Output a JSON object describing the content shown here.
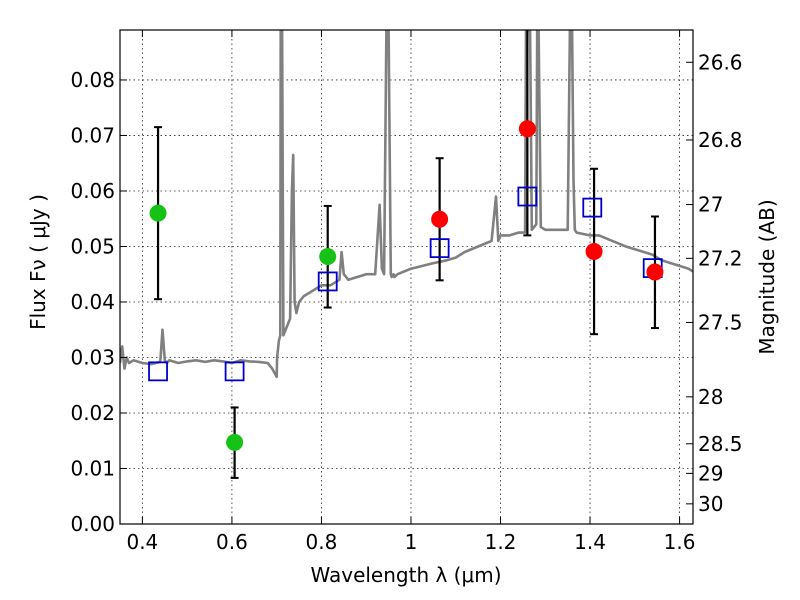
{
  "chart_data": {
    "type": "scatter",
    "xlabel": "Wavelength  λ (μm)",
    "ylabel": "Flux  Fν  ( μJy )",
    "y2label": "Magnitude (AB)",
    "xlim": [
      0.35,
      1.63
    ],
    "ylim": [
      0.0,
      0.089
    ],
    "grid": true,
    "x_ticks": [
      0.4,
      0.6,
      0.8,
      1.0,
      1.2,
      1.4,
      1.6
    ],
    "x_tick_labels": [
      "0.4",
      "0.6",
      "0.8",
      "1",
      "1.2",
      "1.4",
      "1.6"
    ],
    "y_ticks": [
      0.0,
      0.01,
      0.02,
      0.03,
      0.04,
      0.05,
      0.06,
      0.07,
      0.08
    ],
    "y_tick_labels": [
      "0.00",
      "0.01",
      "0.02",
      "0.03",
      "0.04",
      "0.05",
      "0.06",
      "0.07",
      "0.08"
    ],
    "y2_ticks": [
      26.6,
      26.8,
      27.0,
      27.2,
      27.5,
      28.0,
      28.5,
      29.0,
      30.0
    ],
    "y2_tick_labels": [
      "26.6",
      "26.8",
      "27",
      "27.2",
      "27.5",
      "28",
      "28.5",
      "29",
      "30"
    ],
    "colors": {
      "model": "#808080",
      "green": "#17c217",
      "red": "#ff0000",
      "boxes": "#0000cc",
      "errorbars": "#000000"
    },
    "series": [
      {
        "marker": "circle",
        "color": "#17c217",
        "points": [
          {
            "x": 0.435,
            "y": 0.056,
            "yerr_low": 0.0405,
            "yerr_high": 0.0715
          },
          {
            "x": 0.606,
            "y": 0.0147,
            "yerr_low": 0.0083,
            "yerr_high": 0.021
          },
          {
            "x": 0.814,
            "y": 0.0482,
            "yerr_low": 0.039,
            "yerr_high": 0.0573
          }
        ]
      },
      {
        "marker": "circle",
        "color": "#ff0000",
        "points": [
          {
            "x": 1.064,
            "y": 0.0549,
            "yerr_low": 0.0439,
            "yerr_high": 0.0659
          },
          {
            "x": 1.26,
            "y": 0.0712,
            "yerr_low": 0.052,
            "yerr_high": 0.089
          },
          {
            "x": 1.409,
            "y": 0.0491,
            "yerr_low": 0.0342,
            "yerr_high": 0.064
          },
          {
            "x": 1.545,
            "y": 0.0454,
            "yerr_low": 0.0353,
            "yerr_high": 0.0554
          }
        ]
      },
      {
        "marker": "square",
        "color": "#0000cc",
        "points": [
          {
            "x": 0.435,
            "y": 0.0275
          },
          {
            "x": 0.606,
            "y": 0.0275
          },
          {
            "x": 0.814,
            "y": 0.0437
          },
          {
            "x": 1.064,
            "y": 0.0497
          },
          {
            "x": 1.26,
            "y": 0.059
          },
          {
            "x": 1.405,
            "y": 0.057
          },
          {
            "x": 1.54,
            "y": 0.0461
          }
        ]
      },
      {
        "marker": "line",
        "color": "#808080",
        "x": [
          0.35,
          0.355,
          0.36,
          0.365,
          0.37,
          0.38,
          0.4,
          0.42,
          0.44,
          0.445,
          0.45,
          0.455,
          0.46,
          0.48,
          0.5,
          0.52,
          0.54,
          0.56,
          0.58,
          0.6,
          0.62,
          0.64,
          0.66,
          0.68,
          0.69,
          0.7,
          0.701,
          0.705,
          0.708,
          0.709,
          0.712,
          0.715,
          0.72,
          0.73,
          0.734,
          0.737,
          0.74,
          0.744,
          0.75,
          0.76,
          0.78,
          0.8,
          0.82,
          0.84,
          0.845,
          0.85,
          0.855,
          0.86,
          0.88,
          0.9,
          0.92,
          0.93,
          0.935,
          0.94,
          0.945,
          0.95,
          0.955,
          0.957,
          0.959,
          0.961,
          0.963,
          0.97,
          1.0,
          1.05,
          1.08,
          1.1,
          1.12,
          1.15,
          1.18,
          1.19,
          1.195,
          1.2,
          1.22,
          1.24,
          1.255,
          1.257,
          1.26,
          1.263,
          1.266,
          1.27,
          1.275,
          1.28,
          1.282,
          1.285,
          1.29,
          1.3,
          1.33,
          1.35,
          1.355,
          1.36,
          1.363,
          1.366,
          1.37,
          1.4,
          1.42,
          1.45,
          1.48,
          1.5,
          1.52,
          1.54,
          1.56,
          1.58,
          1.6,
          1.62,
          1.63
        ],
        "y": [
          0.029,
          0.032,
          0.028,
          0.03,
          0.029,
          0.0295,
          0.029,
          0.0288,
          0.0292,
          0.035,
          0.0295,
          0.029,
          0.0295,
          0.029,
          0.0293,
          0.0295,
          0.0292,
          0.0295,
          0.0293,
          0.029,
          0.0295,
          0.0293,
          0.0292,
          0.029,
          0.028,
          0.0265,
          0.03,
          0.033,
          0.034,
          0.089,
          0.089,
          0.034,
          0.035,
          0.037,
          0.06,
          0.0665,
          0.04,
          0.038,
          0.04,
          0.041,
          0.042,
          0.043,
          0.043,
          0.044,
          0.049,
          0.045,
          0.0445,
          0.044,
          0.0445,
          0.045,
          0.045,
          0.0575,
          0.046,
          0.045,
          0.089,
          0.089,
          0.045,
          0.0445,
          0.0448,
          0.045,
          0.0445,
          0.045,
          0.046,
          0.047,
          0.0475,
          0.048,
          0.049,
          0.05,
          0.051,
          0.059,
          0.051,
          0.052,
          0.052,
          0.0525,
          0.0525,
          0.089,
          0.089,
          0.089,
          0.089,
          0.053,
          0.0535,
          0.054,
          0.089,
          0.089,
          0.0535,
          0.053,
          0.053,
          0.053,
          0.089,
          0.089,
          0.062,
          0.053,
          0.0525,
          0.052,
          0.052,
          0.051,
          0.05,
          0.0495,
          0.049,
          0.0485,
          0.0475,
          0.047,
          0.0465,
          0.046,
          0.0455
        ]
      }
    ]
  }
}
